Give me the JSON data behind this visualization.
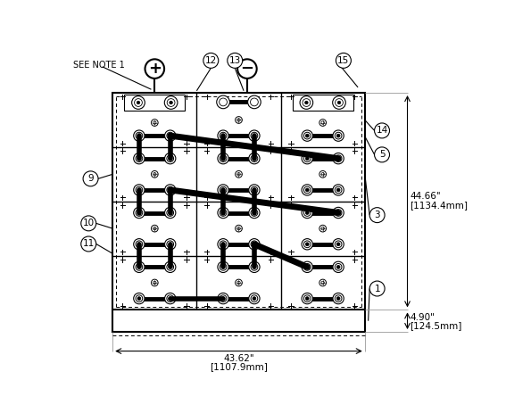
{
  "bg_color": "#ffffff",
  "line_color": "#000000",
  "dim_bottom_text1": "43.62\"",
  "dim_bottom_text2": "[1107.9mm]",
  "dim_right_text1": "44.66\"",
  "dim_right_text2": "[1134.4mm]",
  "dim_small_text1": "4.90\"",
  "dim_small_text2": "[124.5mm]",
  "note_label": "SEE NOTE 1"
}
